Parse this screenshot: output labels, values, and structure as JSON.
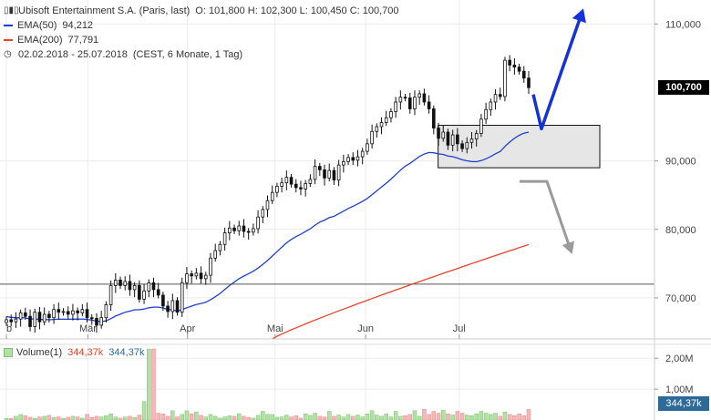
{
  "header": {
    "instrument": "Ubisoft Entertainment S.A. (Paris, last)",
    "ohlc": "O: 101,800  H: 102,300  L: 100,450  C: 100,700",
    "ema50_label": "EMA(50)",
    "ema50_value": "94,212",
    "ema200_label": "EMA(200)",
    "ema200_value": "77,791",
    "range": "02.02.2018 - 25.07.2018",
    "range_note": "(CEST, 6 Monate, 1 Tag)"
  },
  "volume_legend": {
    "label": "Volume(1)",
    "value_red": "344,37k",
    "value_blue": "344,37k"
  },
  "last_price_tag": "100,700",
  "last_volume_tag": "344,37k",
  "colors": {
    "ema50": "#1f3fcf",
    "ema200": "#e8432e",
    "volume_up": "#b3e0a8",
    "volume_down": "#f4b8b8",
    "arrow_blue": "#1432d8",
    "arrow_gray": "#9a9a9a",
    "zone_fill": "#e6e6e6"
  },
  "chart_data": {
    "type": "candlestick",
    "price_axis": {
      "ticks": [
        70000,
        80000,
        90000,
        110000
      ],
      "tick_labels": [
        "70,000",
        "80,000",
        "90,000",
        "110,000"
      ],
      "range": [
        64.0,
        113.5
      ]
    },
    "volume_axis": {
      "ticks": [
        1.0,
        2.0
      ],
      "tick_labels": [
        "1,00M",
        "2,00M"
      ],
      "range": [
        0,
        2.45
      ],
      "unit": "M"
    },
    "x_axis": {
      "labels": [
        "b",
        "Mär",
        "Apr",
        "Mai",
        "Jun",
        "Jul"
      ],
      "label_dates": [
        "2018-02-02",
        "2018-03-01",
        "2018-04-03",
        "2018-05-02",
        "2018-06-01",
        "2018-07-02"
      ],
      "range": [
        "2018-02-02",
        "2018-07-25"
      ]
    },
    "close": [
      66.8,
      66.5,
      66.9,
      67.8,
      67.3,
      65.8,
      67.9,
      66.5,
      67.6,
      67.1,
      68.3,
      67.9,
      68.0,
      67.6,
      68.1,
      67.8,
      68.3,
      67.1,
      67.0,
      66.0,
      67.1,
      69.0,
      71.8,
      72.6,
      71.8,
      72.4,
      71.2,
      71.8,
      69.8,
      71.0,
      72.2,
      71.2,
      70.4,
      68.8,
      68.0,
      69.6,
      67.9,
      72.2,
      73.5,
      73.2,
      73.6,
      72.8,
      73.3,
      75.8,
      76.9,
      77.8,
      79.5,
      80.2,
      79.8,
      80.5,
      79.7,
      79.6,
      80.1,
      81.8,
      82.9,
      84.2,
      85.4,
      86.3,
      86.8,
      87.6,
      86.6,
      86.1,
      85.9,
      86.7,
      87.3,
      89.2,
      88.7,
      87.5,
      88.6,
      87.2,
      89.4,
      89.9,
      90.5,
      90.1,
      90.6,
      91.4,
      92.5,
      94.3,
      95.0,
      95.6,
      96.3,
      97.2,
      98.6,
      99.3,
      99.2,
      97.6,
      99.3,
      99.8,
      98.6,
      97.6,
      94.8,
      93.3,
      94.2,
      92.3,
      93.8,
      92.5,
      91.8,
      92.7,
      93.2,
      94.0,
      96.1,
      97.5,
      98.6,
      99.7,
      99.4,
      104.7,
      104.0,
      103.7,
      103.1,
      102.1,
      100.7
    ],
    "ema50_start": {
      "date": "2018-02-02",
      "value": 67.3
    },
    "ema50_end": {
      "date": "2018-07-25",
      "value": 94.212
    },
    "ema200_start": {
      "date": "2018-05-01",
      "value": 64.0
    },
    "ema200_end": {
      "date": "2018-07-25",
      "value": 77.791
    },
    "horizontal_line": 72.0,
    "zone": {
      "from": "2018-06-25",
      "to": "2018-07-25",
      "low": 89.0,
      "high": 95.2
    },
    "volume": [
      0.05,
      0.05,
      0.12,
      0.18,
      0.14,
      0.09,
      0.05,
      0.1,
      0.12,
      0.15,
      0.08,
      0.1,
      0.05,
      0.09,
      0.12,
      0.1,
      0.06,
      0.18,
      0.08,
      0.12,
      0.1,
      0.14,
      0.2,
      0.1,
      0.06,
      0.1,
      0.12,
      0.08,
      0.16,
      0.6,
      2.3,
      2.3,
      0.22,
      0.2,
      0.12,
      0.3,
      0.1,
      0.18,
      0.3,
      0.2,
      0.26,
      0.15,
      0.1,
      0.18,
      0.12,
      0.06,
      0.1,
      0.14,
      0.12,
      0.2,
      0.12,
      0.08,
      0.06,
      0.15,
      0.28,
      0.18,
      0.18,
      0.09,
      0.1,
      0.16,
      0.1,
      0.14,
      0.06,
      0.2,
      0.15,
      0.22,
      0.12,
      0.1,
      0.28,
      0.12,
      0.16,
      0.1,
      0.18,
      0.12,
      0.16,
      0.1,
      0.2,
      0.3,
      0.16,
      0.12,
      0.2,
      0.1,
      0.28,
      0.12,
      0.14,
      0.18,
      0.3,
      0.12,
      0.35,
      0.18,
      0.28,
      0.22,
      0.32,
      0.2,
      0.16,
      0.28,
      0.22,
      0.16,
      0.14,
      0.2,
      0.28,
      0.22,
      0.18,
      0.22,
      0.12,
      0.26,
      0.18,
      0.14,
      0.2,
      0.14,
      0.34
    ]
  }
}
